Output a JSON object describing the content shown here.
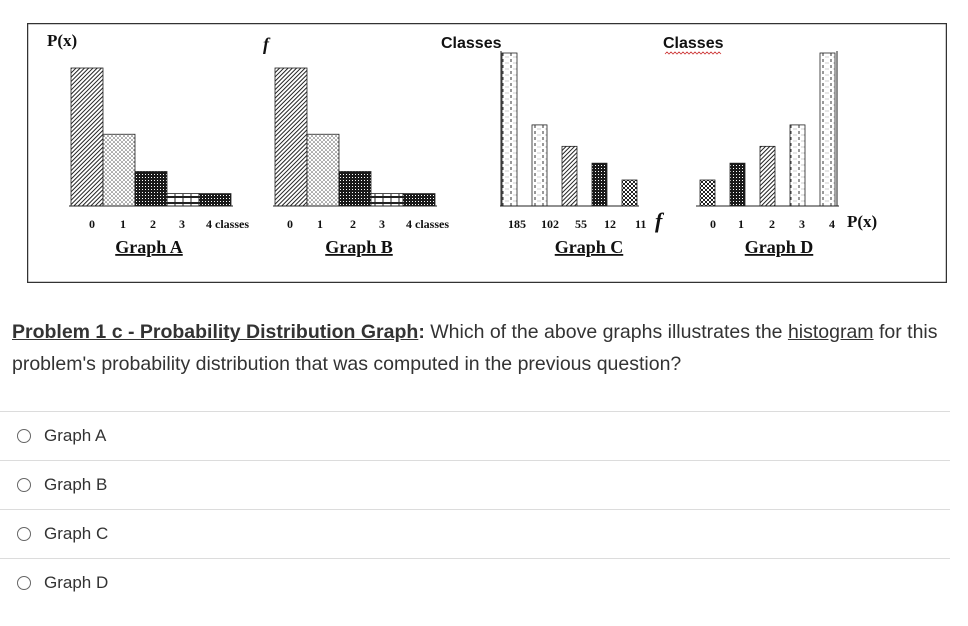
{
  "figure": {
    "graph_a": {
      "caption": "Graph A",
      "y_label": "P(x)",
      "ticks": [
        "0",
        "1",
        "2",
        "3",
        "4 classes"
      ],
      "bars": [
        {
          "pattern": "diag",
          "level": 1.0
        },
        {
          "pattern": "dots",
          "level": 0.52
        },
        {
          "pattern": "grid",
          "level": 0.25
        },
        {
          "pattern": "brick",
          "level": 0.09
        },
        {
          "pattern": "grid",
          "level": 0.09
        }
      ]
    },
    "graph_b": {
      "caption": "Graph B",
      "y_label": "f",
      "ticks": [
        "0",
        "1",
        "2",
        "3",
        "4 classes"
      ],
      "bars": [
        {
          "pattern": "diag",
          "level": 1.0
        },
        {
          "pattern": "dots",
          "level": 0.52
        },
        {
          "pattern": "grid",
          "level": 0.25
        },
        {
          "pattern": "brick",
          "level": 0.09
        },
        {
          "pattern": "grid",
          "level": 0.09
        }
      ]
    },
    "graph_c": {
      "caption": "Graph C",
      "y_label": "Classes",
      "ticks": [
        "185",
        "102",
        "55",
        "12",
        "11"
      ],
      "axis_label": "f",
      "bars": [
        {
          "pattern": "dash",
          "level": 1.0
        },
        {
          "pattern": "dash",
          "level": 0.53
        },
        {
          "pattern": "diag",
          "level": 0.39
        },
        {
          "pattern": "grid",
          "level": 0.28
        },
        {
          "pattern": "check",
          "level": 0.17
        }
      ]
    },
    "graph_d": {
      "caption": "Graph D",
      "y_label": "Classes",
      "ticks": [
        "0",
        "1",
        "2",
        "3",
        "4"
      ],
      "axis_label": "P(x)",
      "bars": [
        {
          "pattern": "check",
          "level": 0.17
        },
        {
          "pattern": "grid",
          "level": 0.28
        },
        {
          "pattern": "diag",
          "level": 0.39
        },
        {
          "pattern": "dash",
          "level": 0.53
        },
        {
          "pattern": "dash",
          "level": 1.0
        }
      ]
    }
  },
  "question": {
    "title": "Problem 1 c - Probability Distribution Graph",
    "colon": ":",
    "text_before": " Which of the above graphs illustrates the ",
    "link": "histogram",
    "text_after": " for this problem's probability distribution that was computed in the previous question?"
  },
  "answers": [
    "Graph A",
    "Graph B",
    "Graph C",
    "Graph D"
  ]
}
